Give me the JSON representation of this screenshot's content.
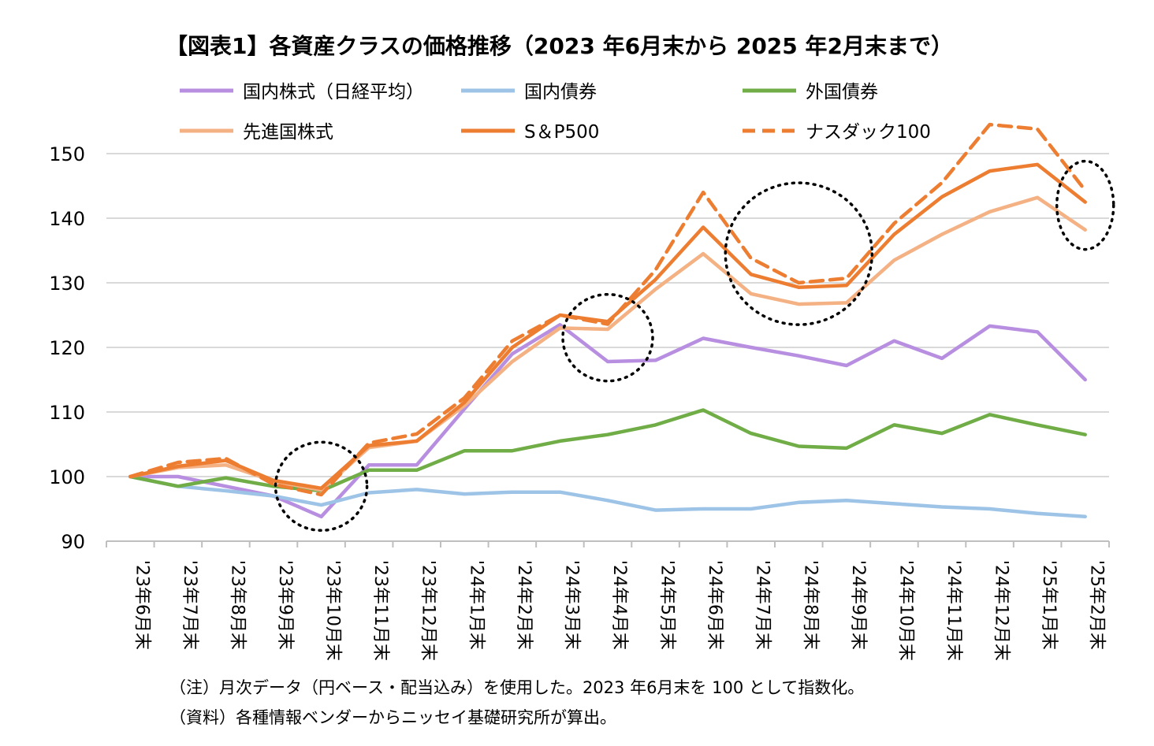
{
  "chart_data": {
    "type": "line",
    "title": "【図表1】各資産クラスの価格推移（2023 年6月末から 2025 年2月末まで）",
    "categories": [
      "'23年6月末",
      "'23年7月末",
      "'23年8月末",
      "'23年9月末",
      "'23年10月末",
      "'23年11月末",
      "'23年12月末",
      "'24年1月末",
      "'24年2月末",
      "'24年3月末",
      "'24年4月末",
      "'24年5月末",
      "'24年6月末",
      "'24年7月末",
      "'24年8月末",
      "'24年9月末",
      "'24年10月末",
      "'24年11月末",
      "'24年12月末",
      "'25年1月末",
      "'25年2月末"
    ],
    "ylim": [
      90,
      150
    ],
    "yticks": [
      90,
      100,
      110,
      120,
      130,
      140,
      150
    ],
    "grid": true,
    "legend_position": "top",
    "series": [
      {
        "name": "国内株式（日経平均）",
        "color": "#b78ee0",
        "dash": false,
        "values": [
          100,
          100,
          98.5,
          97,
          93.8,
          101.8,
          101.8,
          110.5,
          119,
          123.5,
          117.8,
          118,
          121.4,
          120,
          118.7,
          117.2,
          121,
          118.3,
          123.3,
          122.4,
          115
        ]
      },
      {
        "name": "国内債券",
        "color": "#9dc3e6",
        "dash": false,
        "values": [
          100,
          98.5,
          97.8,
          97,
          95.6,
          97.5,
          98,
          97.3,
          97.6,
          97.6,
          96.3,
          94.8,
          95,
          95,
          96,
          96.3,
          95.8,
          95.3,
          95,
          94.3,
          93.8
        ]
      },
      {
        "name": "外国債券",
        "color": "#70ad47",
        "dash": false,
        "values": [
          100,
          98.5,
          99.8,
          98.5,
          97.8,
          101,
          101,
          104,
          104,
          105.5,
          106.5,
          108,
          110.3,
          106.7,
          104.7,
          104.4,
          108,
          106.7,
          109.6,
          108,
          106.5
        ]
      },
      {
        "name": "先進国株式",
        "color": "#f4b183",
        "dash": false,
        "values": [
          100,
          101.4,
          101.8,
          99.3,
          97.9,
          104.5,
          105.5,
          111,
          117.8,
          123,
          122.8,
          129,
          134.5,
          128.3,
          126.7,
          126.9,
          133.5,
          137.5,
          141,
          143.2,
          138.2
        ]
      },
      {
        "name": "S＆P500",
        "color": "#ed7d31",
        "dash": false,
        "values": [
          100,
          101.6,
          102.5,
          99.4,
          98.2,
          104.8,
          105.5,
          111.5,
          120,
          125,
          124,
          130.5,
          138.6,
          131.3,
          129.3,
          129.6,
          137.5,
          143.3,
          147.3,
          148.3,
          142.5
        ]
      },
      {
        "name": "ナスダック100",
        "color": "#ed7d31",
        "dash": true,
        "values": [
          100,
          102.2,
          102.8,
          98.8,
          97.2,
          105.2,
          106.6,
          112.2,
          121,
          125,
          123.6,
          132,
          144,
          133.8,
          130,
          130.7,
          139.2,
          145.5,
          154.5,
          153.8,
          144.3
        ]
      }
    ],
    "annotations": [
      {
        "type": "dotted-circle",
        "category_index": 4,
        "y": 98.5
      },
      {
        "type": "dotted-circle",
        "category_index": 10,
        "y": 121.5
      },
      {
        "type": "dotted-circle",
        "category_index": 14,
        "y": 134.5
      },
      {
        "type": "dotted-circle",
        "category_index": 20,
        "y": 142
      }
    ]
  },
  "notes": {
    "note1": "（注）月次データ（円ベース・配当込み）を使用した。2023 年6月末を 100 として指数化。",
    "note2": "（資料）各種情報ベンダーからニッセイ基礎研究所が算出。"
  }
}
